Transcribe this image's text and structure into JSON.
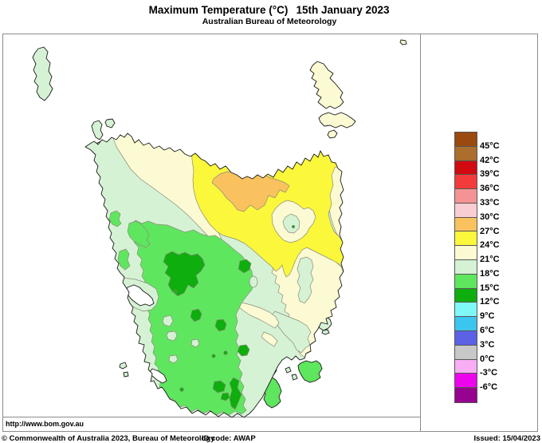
{
  "header": {
    "title": "Maximum Temperature (°C)",
    "date": "15th January 2023",
    "subtitle": "Australian Bureau of Meteorology"
  },
  "map": {
    "region": "Tasmania",
    "url_label": "http://www.bom.gov.au",
    "zone_colors": {
      "sea": "#FFFFFF",
      "mint": "#D5F2D5",
      "cream": "#FBFAD2",
      "yellow": "#FBF73B",
      "orange": "#F9C25E",
      "green_mid": "#5FE65F",
      "green": "#0DAE0D"
    },
    "zones": [
      {
        "range": "27-30°C",
        "color": "#F9C25E"
      },
      {
        "range": "24-27°C",
        "color": "#FBF73B"
      },
      {
        "range": "21-24°C",
        "color": "#FBFAD2"
      },
      {
        "range": "18-21°C",
        "color": "#D5F2D5"
      },
      {
        "range": "15-18°C",
        "color": "#5FE65F"
      },
      {
        "range": "12-15°C",
        "color": "#0DAE0D"
      }
    ]
  },
  "legend": {
    "labels": [
      "45°C",
      "42°C",
      "39°C",
      "36°C",
      "33°C",
      "30°C",
      "27°C",
      "24°C",
      "21°C",
      "18°C",
      "15°C",
      "12°C",
      "9°C",
      "6°C",
      "3°C",
      "0°C",
      "-3°C",
      "-6°C"
    ],
    "colors": [
      "#9A4A0E",
      "#AC6E2D",
      "#D00A10",
      "#F43B3B",
      "#F49393",
      "#F8CDD3",
      "#F9C25E",
      "#FBF73B",
      "#FBFAD2",
      "#D5F2D5",
      "#5FE65F",
      "#0DAE0D",
      "#7FF8F8",
      "#3CC5EE",
      "#5B62E6",
      "#C8C8C8",
      "#F9AEF4",
      "#EC05EC",
      "#96038F"
    ]
  },
  "footer": {
    "copyright": "© Commonwealth of Australia 2023, Bureau of Meteorology",
    "id_code": "ID code: AWAP",
    "issued": "Issued: 15/04/2023"
  }
}
